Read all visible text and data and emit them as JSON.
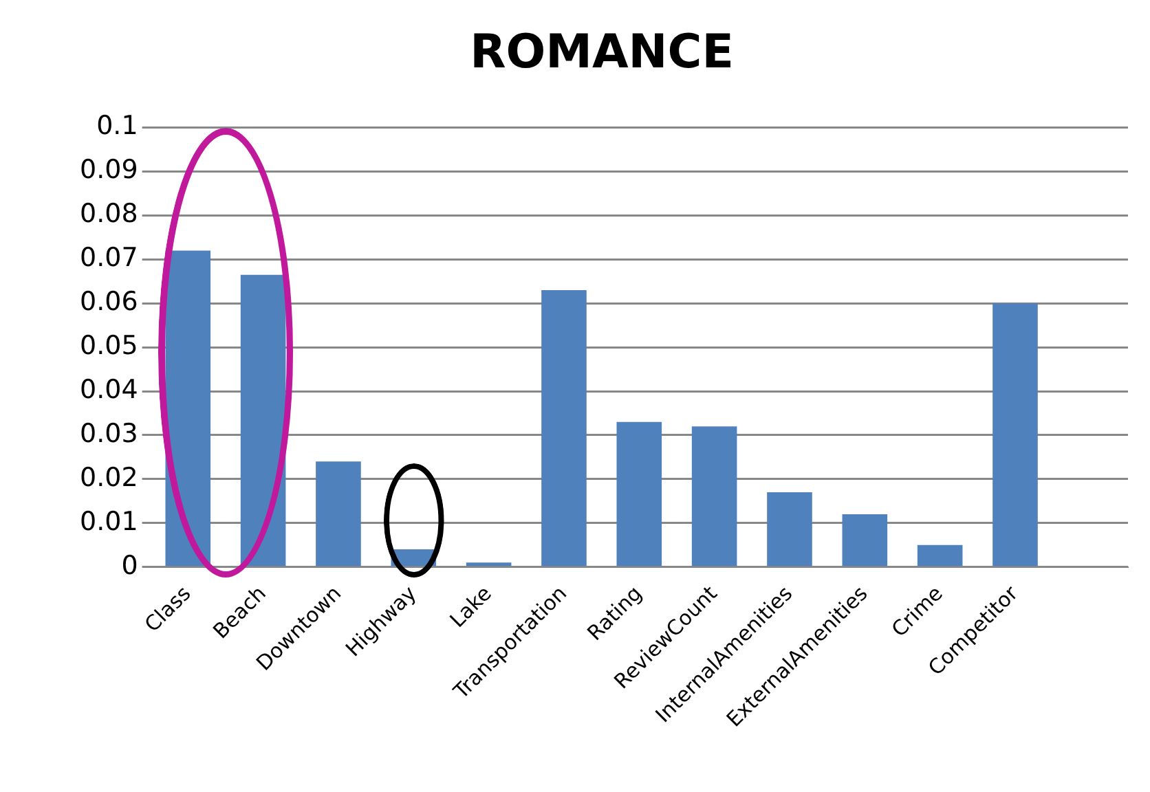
{
  "chart_data": {
    "type": "bar",
    "title": "ROMANCE",
    "categories": [
      "Class",
      "Beach",
      "Downtown",
      "Highway",
      "Lake",
      "Transportation",
      "Rating",
      "ReviewCount",
      "InternalAmenities",
      "ExternalAmenities",
      "Crime",
      "Competitor",
      null
    ],
    "values": [
      0.072,
      0.0665,
      0.024,
      0.004,
      0.001,
      0.063,
      0.033,
      0.032,
      0.017,
      0.012,
      0.005,
      0.06,
      null
    ],
    "color": "#4f81bd",
    "ylim": [
      0,
      0.1
    ],
    "yticks": [
      0,
      0.01,
      0.02,
      0.03,
      0.04,
      0.05,
      0.06,
      0.07,
      0.08,
      0.09,
      0.1
    ],
    "grid": "y",
    "legend": false
  }
}
